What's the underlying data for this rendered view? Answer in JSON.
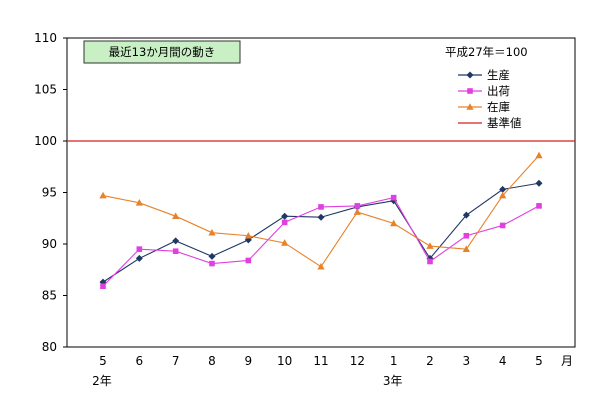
{
  "chart_data": {
    "type": "line",
    "title": "最近13か月間の動き",
    "base_note": "平成27年＝100",
    "x_unit": "月",
    "categories": [
      "5",
      "6",
      "7",
      "8",
      "9",
      "10",
      "11",
      "12",
      "1",
      "2",
      "3",
      "4",
      "5"
    ],
    "year_labels": [
      {
        "label": "2年",
        "at_index": 0
      },
      {
        "label": "3年",
        "at_index": 8
      }
    ],
    "ylim": [
      80,
      110
    ],
    "yticks": [
      80,
      85,
      90,
      95,
      100,
      105,
      110
    ],
    "series": [
      {
        "name": "生産",
        "color": "#1f3864",
        "marker": "diamond",
        "values": [
          86.3,
          88.6,
          90.3,
          88.8,
          90.4,
          92.7,
          92.6,
          93.6,
          94.2,
          88.6,
          92.8,
          95.3,
          95.9
        ]
      },
      {
        "name": "出荷",
        "color": "#e040e0",
        "marker": "square",
        "values": [
          85.9,
          89.5,
          89.3,
          88.1,
          88.4,
          92.1,
          93.6,
          93.7,
          94.5,
          88.3,
          90.8,
          91.8,
          93.7
        ]
      },
      {
        "name": "在庫",
        "color": "#e8822a",
        "marker": "triangle",
        "values": [
          94.7,
          94.0,
          92.7,
          91.1,
          90.8,
          90.1,
          87.8,
          93.1,
          92.0,
          89.8,
          89.5,
          94.7,
          98.6
        ]
      },
      {
        "name": "基準値",
        "color": "#d32020",
        "marker": "none",
        "values": [
          100,
          100,
          100,
          100,
          100,
          100,
          100,
          100,
          100,
          100,
          100,
          100,
          100
        ]
      }
    ],
    "grid": false,
    "legend_placement": "top-right"
  }
}
